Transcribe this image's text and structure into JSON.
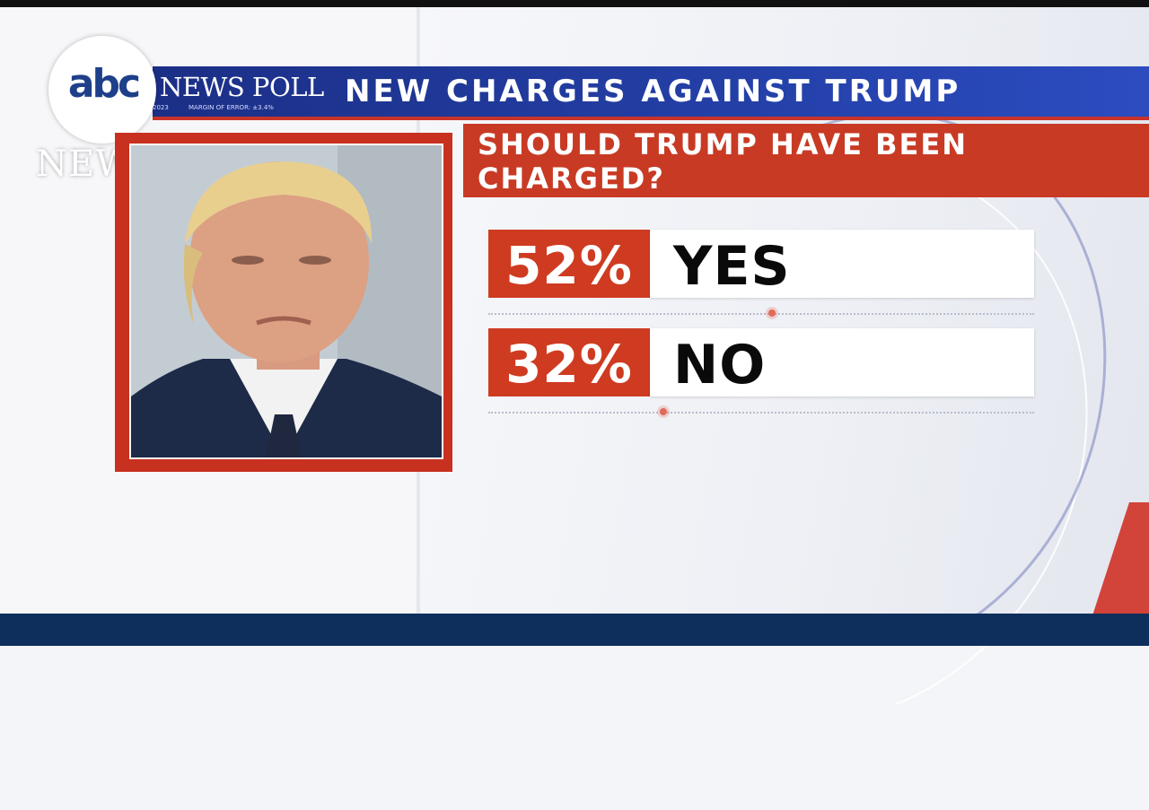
{
  "brand": {
    "logo_text": "abc",
    "logo_news": "NEWS",
    "poll_label": "NEWS POLL",
    "date_text": "2023",
    "margin_of_error": "MARGIN OF ERROR: ±3.4%"
  },
  "header": {
    "title": "NEW CHARGES AGAINST TRUMP"
  },
  "question": {
    "text": "SHOULD TRUMP HAVE BEEN CHARGED?"
  },
  "results": [
    {
      "percent": "52%",
      "label": "YES",
      "value": 52
    },
    {
      "percent": "32%",
      "label": "NO",
      "value": 32
    }
  ],
  "colors": {
    "header_blue": "#2440a8",
    "accent_red": "#c83a24",
    "bottom_navy": "#0e2f5c"
  }
}
